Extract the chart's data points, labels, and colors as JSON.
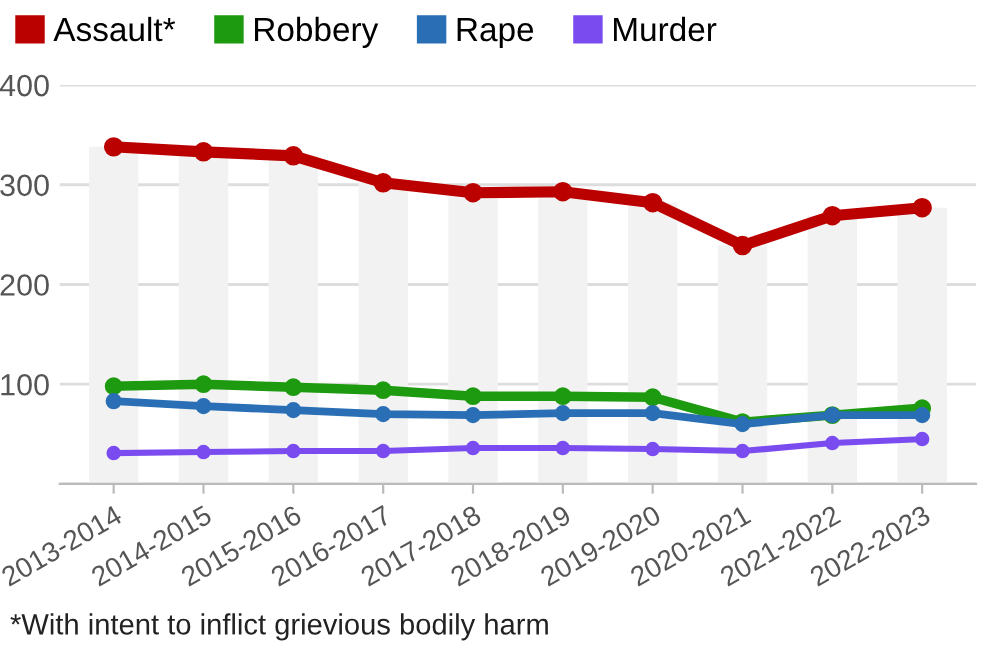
{
  "chart_data": {
    "type": "line",
    "categories": [
      "2013-2014",
      "2014-2015",
      "2015-2016",
      "2016-2017",
      "2017-2018",
      "2018-2019",
      "2019-2020",
      "2020-2021",
      "2021-2022",
      "2022-2023"
    ],
    "series": [
      {
        "type": "bar",
        "color": "#f2f2f2",
        "values": [
          338,
          333,
          329,
          302,
          292,
          293,
          282,
          239,
          269,
          277
        ]
      },
      {
        "name": "Assault*",
        "color": "#bb0000",
        "values": [
          338,
          333,
          329,
          302,
          292,
          293,
          282,
          239,
          269,
          277
        ]
      },
      {
        "name": "Robbery",
        "color": "#1d9a0f",
        "values": [
          98,
          100,
          97,
          94,
          88,
          88,
          87,
          62,
          69,
          76
        ]
      },
      {
        "name": "Rape",
        "color": "#2a6fb5",
        "values": [
          83,
          78,
          74,
          70,
          69,
          71,
          71,
          60,
          69,
          69
        ]
      },
      {
        "name": "Murder",
        "color": "#7a4cf0",
        "values": [
          31,
          32,
          33,
          33,
          36,
          36,
          35,
          33,
          41,
          45
        ]
      }
    ],
    "ylim": [
      0,
      400
    ],
    "yticks": [
      {
        "value": 0,
        "label": null
      },
      100,
      200,
      300,
      400
    ],
    "grid": "y",
    "legend": "top left",
    "marker": "circle",
    "line_style": "solid",
    "annotations": [
      "*With intent to inflict grievious bodily harm"
    ]
  }
}
